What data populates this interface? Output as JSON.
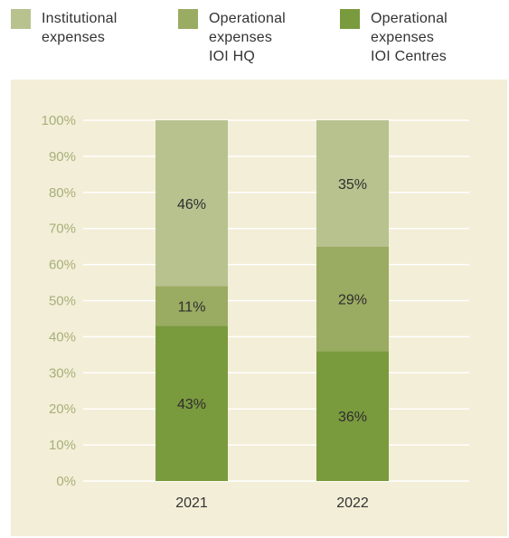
{
  "colors": {
    "panel_background": "#f3eed7",
    "gridline": "#ffffff",
    "tick_text": "#a7b07a"
  },
  "chart_data": {
    "type": "bar",
    "stacked": true,
    "categories": [
      "2021",
      "2022"
    ],
    "series": [
      {
        "name": "Operational expenses IOI Centres",
        "legend_lines": [
          "Operational",
          "expenses",
          "IOI Centres"
        ],
        "color": "#7a9a3e",
        "values": [
          43,
          36
        ],
        "labels": [
          "43%",
          "36%"
        ]
      },
      {
        "name": "Operational expenses IOI HQ",
        "legend_lines": [
          "Operational",
          "expenses",
          "IOI HQ"
        ],
        "color": "#9aab62",
        "values": [
          11,
          29
        ],
        "labels": [
          "11%",
          "29%"
        ]
      },
      {
        "name": "Institutional expenses",
        "legend_lines": [
          "Institutional",
          "expenses"
        ],
        "color": "#b7c28f",
        "values": [
          46,
          35
        ],
        "labels": [
          "46%",
          "35%"
        ]
      }
    ],
    "y_ticks": [
      "0%",
      "10%",
      "20%",
      "30%",
      "40%",
      "50%",
      "60%",
      "70%",
      "80%",
      "90%",
      "100%"
    ],
    "ylim": [
      0,
      100
    ],
    "grid": true,
    "legend_position": "top"
  }
}
